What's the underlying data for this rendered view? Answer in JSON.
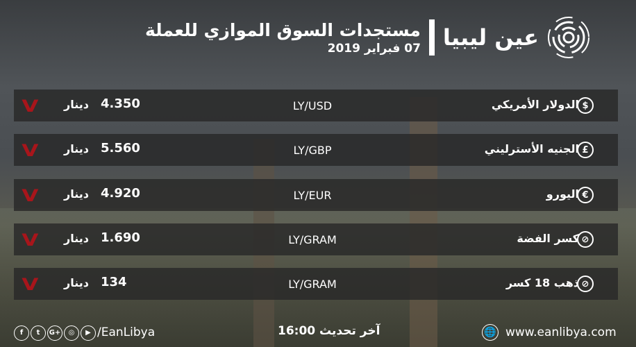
{
  "header": {
    "title": "مستجدات السوق الموازي للعملة",
    "date": "07 فبراير 2019",
    "logo_text": "عين ليبيا"
  },
  "rows": [
    {
      "name": "الدولار الأمريكي",
      "icon": "dollar-icon",
      "symbol": "$",
      "pair": "LY/USD",
      "value": "4.350",
      "unit": "دينار",
      "trend": "down"
    },
    {
      "name": "الجنيه الأسترليني",
      "icon": "pound-icon",
      "symbol": "£",
      "pair": "LY/GBP",
      "value": "5.560",
      "unit": "دينار",
      "trend": "down"
    },
    {
      "name": "اليورو",
      "icon": "euro-icon",
      "symbol": "€",
      "pair": "LY/EUR",
      "value": "4.920",
      "unit": "دينار",
      "trend": "down"
    },
    {
      "name": "كسر الفضة",
      "icon": "silver-icon",
      "symbol": "⊘",
      "pair": "LY/GRAM",
      "value": "1.690",
      "unit": "دينار",
      "trend": "down"
    },
    {
      "name": "ذهب 18 كسر",
      "icon": "gold-icon",
      "symbol": "⊘",
      "pair": "LY/GRAM",
      "value": "134",
      "unit": "دينار",
      "trend": "down"
    }
  ],
  "footer": {
    "social_handle": "/EanLibya",
    "social": [
      "f",
      "t",
      "G+",
      "◎",
      "▶"
    ],
    "updated": "آخر تحديث 16:00",
    "website": "www.eanlibya.com"
  },
  "colors": {
    "down": "#a8151b"
  }
}
